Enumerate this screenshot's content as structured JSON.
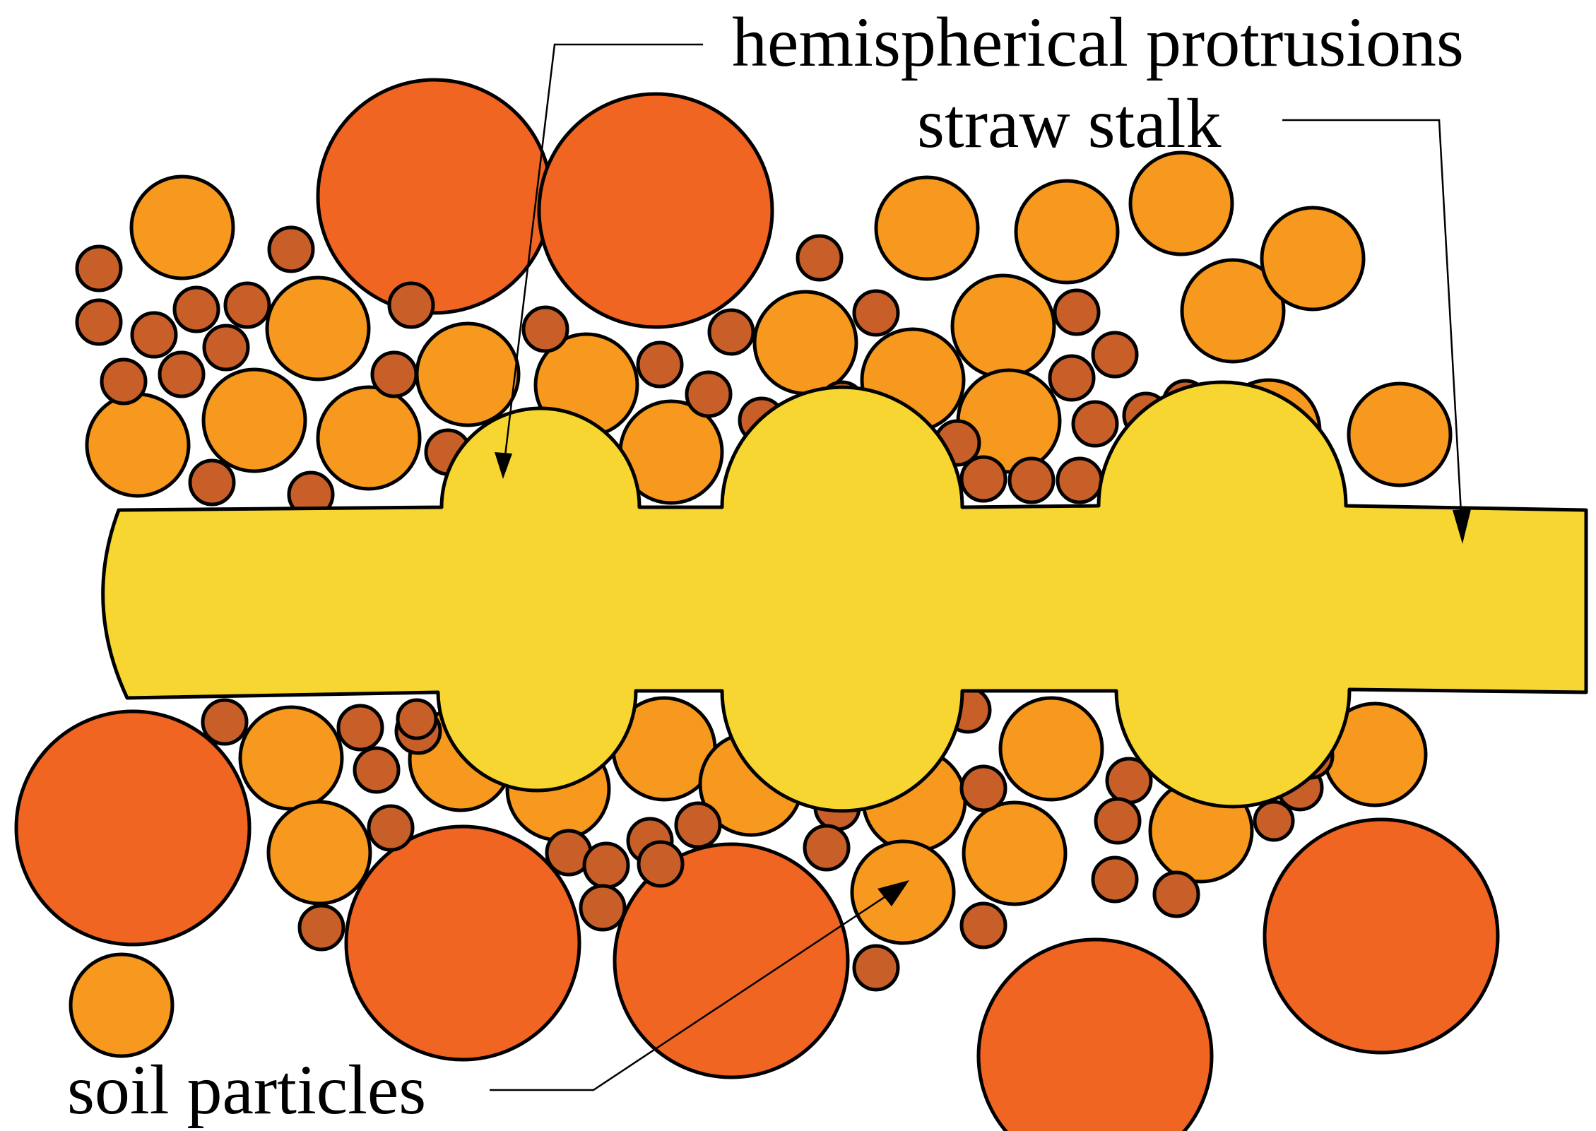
{
  "labels": {
    "protrusions": "hemispherical protrusions",
    "stalk": "straw stalk",
    "soil": "soil particles"
  },
  "colors": {
    "background": "#ffffff",
    "stalk": "#f7d631",
    "small_particle": "#c85f28",
    "medium_particle": "#f7991e",
    "large_particle": "#f06522",
    "outline": "#000000"
  }
}
